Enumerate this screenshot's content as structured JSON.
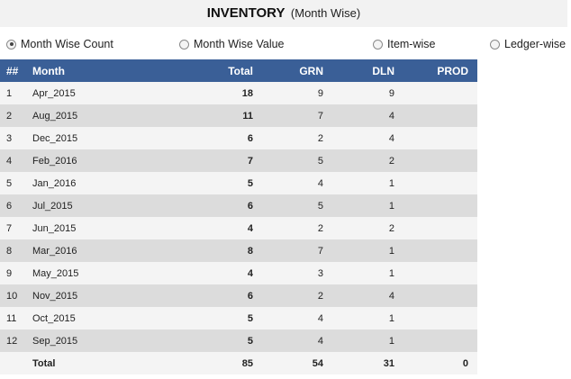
{
  "header": {
    "title": "INVENTORY",
    "subtitle": "(Month Wise)"
  },
  "views": [
    {
      "label": "Month Wise Count",
      "checked": true
    },
    {
      "label": "Month Wise Value",
      "checked": false
    },
    {
      "label": "Item-wise",
      "checked": false
    },
    {
      "label": "Ledger-wise",
      "checked": false
    }
  ],
  "table": {
    "columns": [
      "##",
      "Month",
      "Total",
      "GRN",
      "DLN",
      "PROD"
    ],
    "rows": [
      {
        "no": "1",
        "month": "Apr_2015",
        "total": "18",
        "grn": "9",
        "dln": "9",
        "prod": ""
      },
      {
        "no": "2",
        "month": "Aug_2015",
        "total": "11",
        "grn": "7",
        "dln": "4",
        "prod": ""
      },
      {
        "no": "3",
        "month": "Dec_2015",
        "total": "6",
        "grn": "2",
        "dln": "4",
        "prod": ""
      },
      {
        "no": "4",
        "month": "Feb_2016",
        "total": "7",
        "grn": "5",
        "dln": "2",
        "prod": ""
      },
      {
        "no": "5",
        "month": "Jan_2016",
        "total": "5",
        "grn": "4",
        "dln": "1",
        "prod": ""
      },
      {
        "no": "6",
        "month": "Jul_2015",
        "total": "6",
        "grn": "5",
        "dln": "1",
        "prod": ""
      },
      {
        "no": "7",
        "month": "Jun_2015",
        "total": "4",
        "grn": "2",
        "dln": "2",
        "prod": ""
      },
      {
        "no": "8",
        "month": "Mar_2016",
        "total": "8",
        "grn": "7",
        "dln": "1",
        "prod": ""
      },
      {
        "no": "9",
        "month": "May_2015",
        "total": "4",
        "grn": "3",
        "dln": "1",
        "prod": ""
      },
      {
        "no": "10",
        "month": "Nov_2015",
        "total": "6",
        "grn": "2",
        "dln": "4",
        "prod": ""
      },
      {
        "no": "11",
        "month": "Oct_2015",
        "total": "5",
        "grn": "4",
        "dln": "1",
        "prod": ""
      },
      {
        "no": "12",
        "month": "Sep_2015",
        "total": "5",
        "grn": "4",
        "dln": "1",
        "prod": ""
      }
    ],
    "total_row": {
      "label": "Total",
      "total": "85",
      "grn": "54",
      "dln": "31",
      "prod": "0"
    }
  },
  "colors": {
    "header_bg": "#3a5f97",
    "row_light": "#f4f4f4",
    "row_dark": "#dcdcdc",
    "total_bg": "#c4c4c4"
  }
}
